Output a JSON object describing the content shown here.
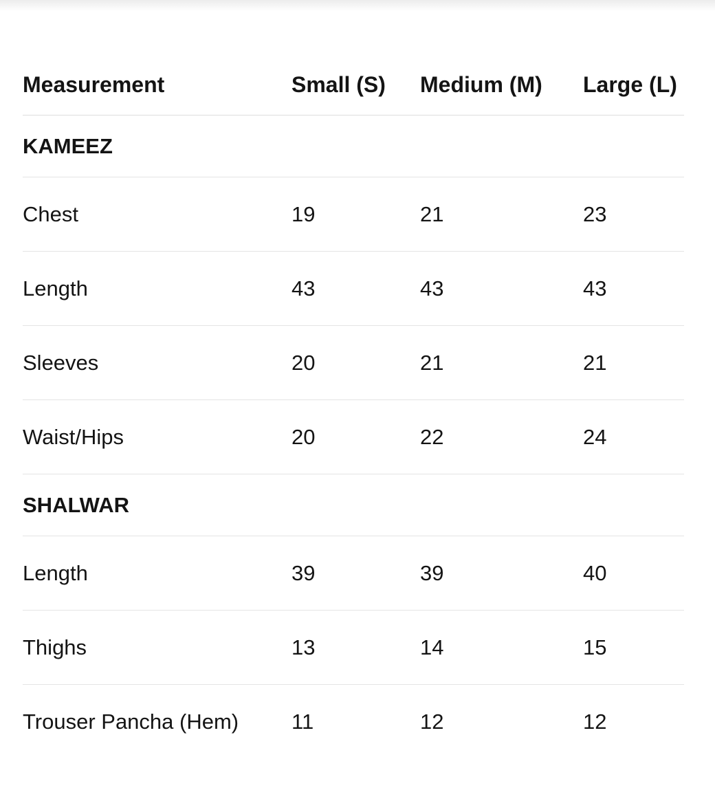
{
  "table": {
    "headers": [
      "Measurement",
      "Small (S)",
      "Medium (M)",
      "Large (L)"
    ],
    "sections": [
      {
        "title": "KAMEEZ",
        "rows": [
          [
            "Chest",
            "19",
            "21",
            "23"
          ],
          [
            "Length",
            "43",
            "43",
            "43"
          ],
          [
            "Sleeves",
            "20",
            "21",
            "21"
          ],
          [
            "Waist/Hips",
            "20",
            "22",
            "24"
          ]
        ]
      },
      {
        "title": "SHALWAR",
        "rows": [
          [
            "Length",
            "39",
            "39",
            "40"
          ],
          [
            "Thighs",
            "13",
            "14",
            "15"
          ],
          [
            "Trouser Pancha (Hem)",
            "11",
            "12",
            "12"
          ]
        ]
      }
    ]
  }
}
